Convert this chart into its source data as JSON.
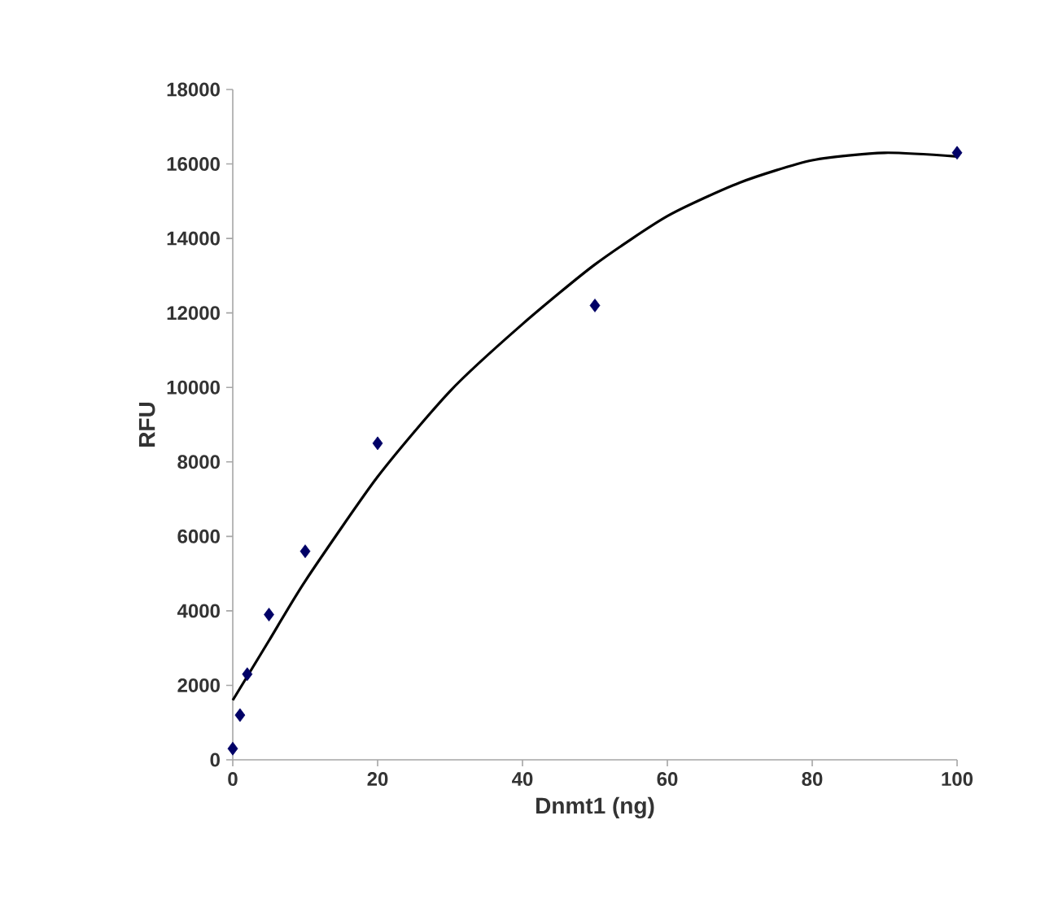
{
  "chart_data": {
    "type": "scatter",
    "xlabel": "Dnmt1 (ng)",
    "ylabel": "RFU",
    "xlim": [
      0,
      100
    ],
    "xticks": [
      0,
      20,
      40,
      60,
      80,
      100
    ],
    "ylim": [
      0,
      18000
    ],
    "yticks": [
      0,
      2000,
      4000,
      6000,
      8000,
      10000,
      12000,
      14000,
      16000,
      18000
    ],
    "x": [
      0,
      1,
      2,
      5,
      10,
      20,
      50,
      100
    ],
    "series": [
      {
        "color": "#000066",
        "marker": "diamond",
        "values": [
          300,
          1200,
          2300,
          3900,
          5600,
          8500,
          12200,
          16300
        ]
      },
      {
        "type": "line",
        "color": "#000000",
        "marker": "none",
        "line_style": "solid",
        "x": [
          0,
          5,
          10,
          20,
          30,
          40,
          50,
          60,
          70,
          80,
          90,
          100
        ],
        "values": [
          1600,
          3200,
          4800,
          7600,
          9900,
          11700,
          13300,
          14600,
          15500,
          16100,
          16300,
          16200
        ]
      }
    ]
  }
}
